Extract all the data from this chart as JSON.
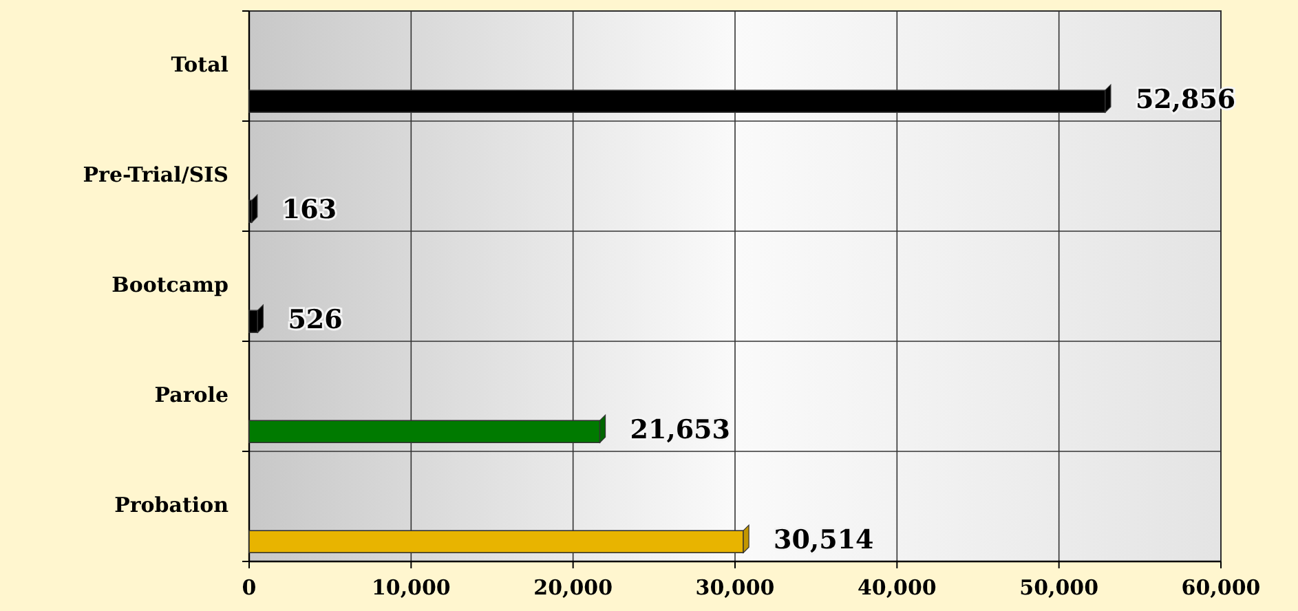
{
  "chart_data": {
    "type": "bar",
    "orientation": "horizontal",
    "categories": [
      "Total",
      "Pre-Trial/SIS",
      "Bootcamp",
      "Parole",
      "Probation"
    ],
    "values": [
      52856,
      163,
      526,
      21653,
      30514
    ],
    "colors": [
      "#000000",
      "#000000",
      "#000000",
      "#007a00",
      "#e8b400"
    ],
    "value_labels": [
      "52,856",
      "163",
      "526",
      "21,653",
      "30,514"
    ],
    "grid": true,
    "xlim": [
      0,
      60000
    ],
    "xticks": [
      0,
      {
        "value": 10000,
        "label": "10,000"
      },
      {
        "value": 20000,
        "label": "20,000"
      },
      {
        "value": 30000,
        "label": "30,000"
      },
      {
        "value": 40000,
        "label": "40,000"
      },
      {
        "value": 50000,
        "label": "50,000"
      },
      {
        "value": 60000,
        "label": "60,000"
      }
    ]
  }
}
